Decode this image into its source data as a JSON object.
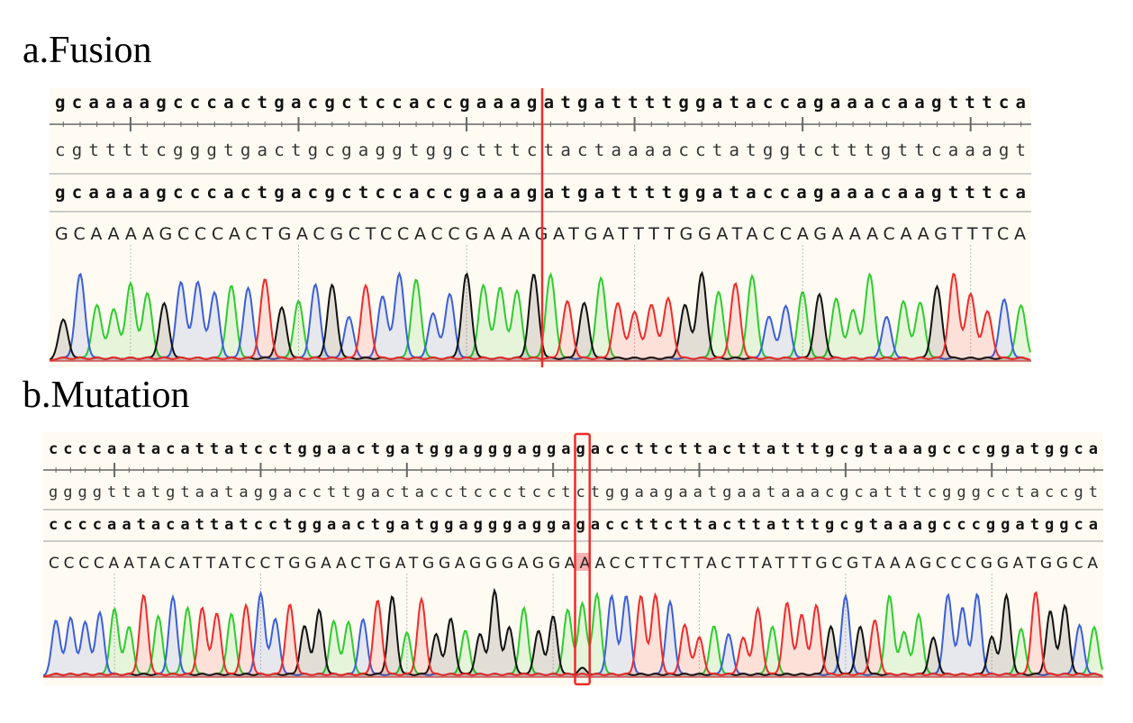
{
  "panels": [
    {
      "id": "fusion",
      "title": "a.Fusion",
      "reference": "gcaaaagcccactgacgctccaccgaaagatgattttggataccagaaacaagtttca",
      "complement": "cgttttcgggtgactgcgaggtggctttctactaaaacctatggtctttgttcaaagt",
      "consensus": "gcaaaagcccactgacgctccaccgaaagatgattttggataccagaaacaagtttca",
      "basecalls": "GCAAAAGCCCACTGACGCTCCACCGAAAGATGATTTTGGATACCAGAAACAAGTTTCA",
      "marker": {
        "type": "junction-line",
        "base_index": 29,
        "color": "#ee2b2b"
      }
    },
    {
      "id": "mutation",
      "title": "b.Mutation",
      "reference": "ccccaatacattatcctggaactgatggagggaggagaccttcttacttatttgcgtaaagcccggatggca",
      "complement": "ggggttatgtaataggaccttgactacctccctcctctggaagaatgaataaacgcatttcgggcctaccgt",
      "consensus": "ccccaatacattatcctggaactgatggagggaggagaccttcttacttatttgcgtaaagcccggatggca",
      "basecalls": "CCCCAATACATTATCCTGGAACTGATGGAGGGAGGAAACCTTCTTACTTATTTGCGTAAAGCCCGGATGGCA",
      "marker": {
        "type": "box",
        "base_index": 36,
        "color": "#ee2b2b",
        "reference_base": "g",
        "called_base": "A"
      }
    }
  ],
  "base_colors": {
    "A": "#2ecc2e",
    "C": "#3b5fd9",
    "G": "#111111",
    "T": "#ee2b2b"
  },
  "panel_background": "#fffbf2"
}
